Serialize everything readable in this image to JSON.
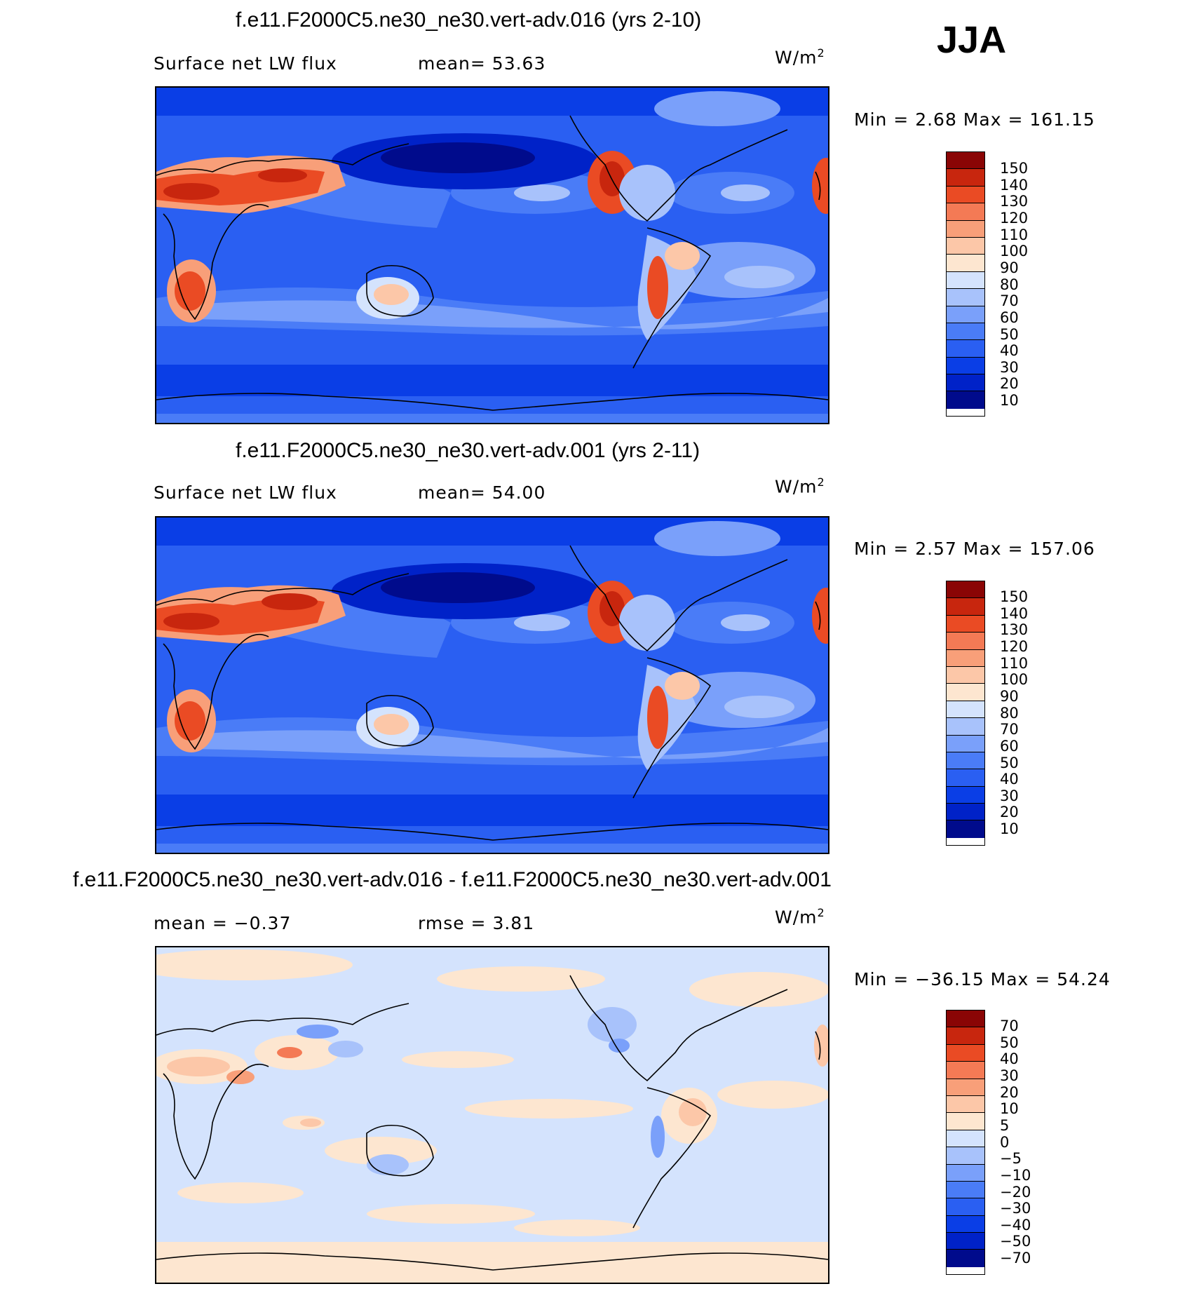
{
  "season": "JJA",
  "colors": {
    "main_scale": [
      "#000b8c",
      "#0022c8",
      "#0a3ee6",
      "#2a5ff2",
      "#4a7cf7",
      "#7aa0fa",
      "#a8c2fb",
      "#d4e3fd",
      "#fde6d0",
      "#fcc7a8",
      "#f89f79",
      "#f47a55",
      "#ea4b24",
      "#c8260e",
      "#8a0505"
    ],
    "diff_scale": [
      "#000b8c",
      "#0022c8",
      "#0a3ee6",
      "#2a5ff2",
      "#4a7cf7",
      "#7aa0fa",
      "#a8c2fb",
      "#d4e3fd",
      "#fde6d0",
      "#fcc7a8",
      "#f89f79",
      "#f47a55",
      "#ea4b24",
      "#c8260e",
      "#8a0505"
    ]
  },
  "panels": [
    {
      "title": "f.e11.F2000C5.ne30_ne30.vert-adv.016 (yrs 2-10)",
      "left_label": "Surface net LW flux",
      "mid_label": "mean=  53.63",
      "unit": "W/m",
      "unit_sup": "2",
      "minmax": "Min =    2.68 Max = 161.15",
      "ticks": [
        "150",
        "140",
        "130",
        "120",
        "110",
        "100",
        "90",
        "80",
        "70",
        "60",
        "50",
        "40",
        "30",
        "20",
        "10"
      ],
      "scale": "main"
    },
    {
      "title": "f.e11.F2000C5.ne30_ne30.vert-adv.001 (yrs 2-11)",
      "left_label": "Surface net LW flux",
      "mid_label": "mean=  54.00",
      "unit": "W/m",
      "unit_sup": "2",
      "minmax": "Min =    2.57 Max = 157.06",
      "ticks": [
        "150",
        "140",
        "130",
        "120",
        "110",
        "100",
        "90",
        "80",
        "70",
        "60",
        "50",
        "40",
        "30",
        "20",
        "10"
      ],
      "scale": "main"
    },
    {
      "title": "f.e11.F2000C5.ne30_ne30.vert-adv.016 - f.e11.F2000C5.ne30_ne30.vert-adv.001",
      "left_label": "mean =  −0.37",
      "mid_label": "rmse =    3.81",
      "unit": "W/m",
      "unit_sup": "2",
      "minmax": "Min = −36.15 Max =  54.24",
      "ticks": [
        "70",
        "50",
        "40",
        "30",
        "20",
        "10",
        "5",
        "0",
        "−5",
        "−10",
        "−20",
        "−30",
        "−40",
        "−50",
        "−70"
      ],
      "scale": "diff"
    }
  ]
}
